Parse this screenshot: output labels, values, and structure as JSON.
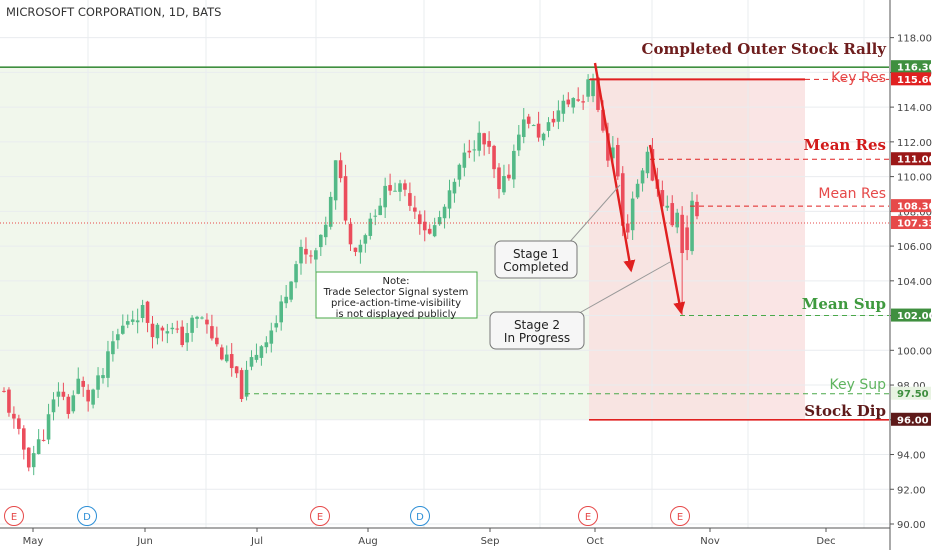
{
  "chart_data": {
    "type": "candlestick",
    "title": "MICROSOFT CORPORATION, 1D, BATS",
    "x_ticks": [
      "May",
      "Jun",
      "Jul",
      "Aug",
      "Sep",
      "Oct",
      "Nov",
      "Dec"
    ],
    "y_ticks": [
      "118.00",
      "116.00",
      "114.00",
      "112.00",
      "110.00",
      "108.00",
      "106.00",
      "104.00",
      "102.00",
      "100.00",
      "98.00",
      "96.00",
      "94.00",
      "92.00",
      "90.00"
    ],
    "ylim": [
      89.7,
      119.7
    ],
    "grid": true,
    "price_flags": [
      {
        "value": 116.3,
        "label": "116.30",
        "color": "#3f8f3f",
        "text_color": "#ffffff"
      },
      {
        "value": 115.6,
        "label": "115.60",
        "color": "#e02020",
        "text_color": "#ffffff"
      },
      {
        "value": 111.0,
        "label": "111.00",
        "color": "#9b1717",
        "text_color": "#ffffff"
      },
      {
        "value": 108.3,
        "label": "108.30",
        "color": "#e64949",
        "text_color": "#ffffff"
      },
      {
        "value": 107.33,
        "label": "107.33",
        "color": "#e64949",
        "text_color": "#ffffff"
      },
      {
        "value": 102.0,
        "label": "102.00",
        "color": "#3f8f3f",
        "text_color": "#ffffff"
      },
      {
        "value": 97.5,
        "label": "97.50",
        "color": "#e8f3e2",
        "text_color": "#3f8f3f"
      },
      {
        "value": 96.0,
        "label": "96.00",
        "color": "#5e1a1a",
        "text_color": "#ffffff"
      }
    ],
    "levels": [
      {
        "name": "Completed Outer Stock Rally",
        "value": 116.3,
        "color": "#3f8f3f",
        "label_color": "#6e1d1d",
        "style": "solid",
        "font": "serif"
      },
      {
        "name": "Key Res",
        "value": 115.6,
        "color": "#e02020",
        "label_color": "#e64949",
        "style": "dashed",
        "font": "sans"
      },
      {
        "name": "Mean Res",
        "value": 111.0,
        "color": "#e02020",
        "label_color": "#d11a1a",
        "style": "dashed",
        "font": "serif"
      },
      {
        "name": "Mean Res",
        "value": 108.3,
        "color": "#e02020",
        "label_color": "#e64949",
        "style": "dashed",
        "font": "sans"
      },
      {
        "name": "Mean Sup",
        "value": 102.0,
        "color": "#4aa84a",
        "label_color": "#3f9a3f",
        "style": "dashed",
        "font": "serif"
      },
      {
        "name": "Key Sup",
        "value": 97.5,
        "color": "#4aa84a",
        "label_color": "#5fb45f",
        "style": "dashed",
        "font": "sans"
      },
      {
        "name": "Stock Dip",
        "value": 96.0,
        "color": "#e02020",
        "label_color": "#5e1a1a",
        "style": "solid",
        "font": "serif"
      }
    ],
    "annotations": {
      "stage1": [
        "Stage 1",
        "Completed"
      ],
      "stage2": [
        "Stage 2",
        "In Progress"
      ],
      "note": [
        "Note:",
        "Trade Selector Signal system",
        "price-action-time-visibility",
        "is not displayed publicly"
      ]
    },
    "event_markers": [
      "E",
      "D",
      "E",
      "D",
      "E",
      "E"
    ],
    "colors": {
      "up": "#53b987",
      "down": "#eb4d5c"
    }
  }
}
